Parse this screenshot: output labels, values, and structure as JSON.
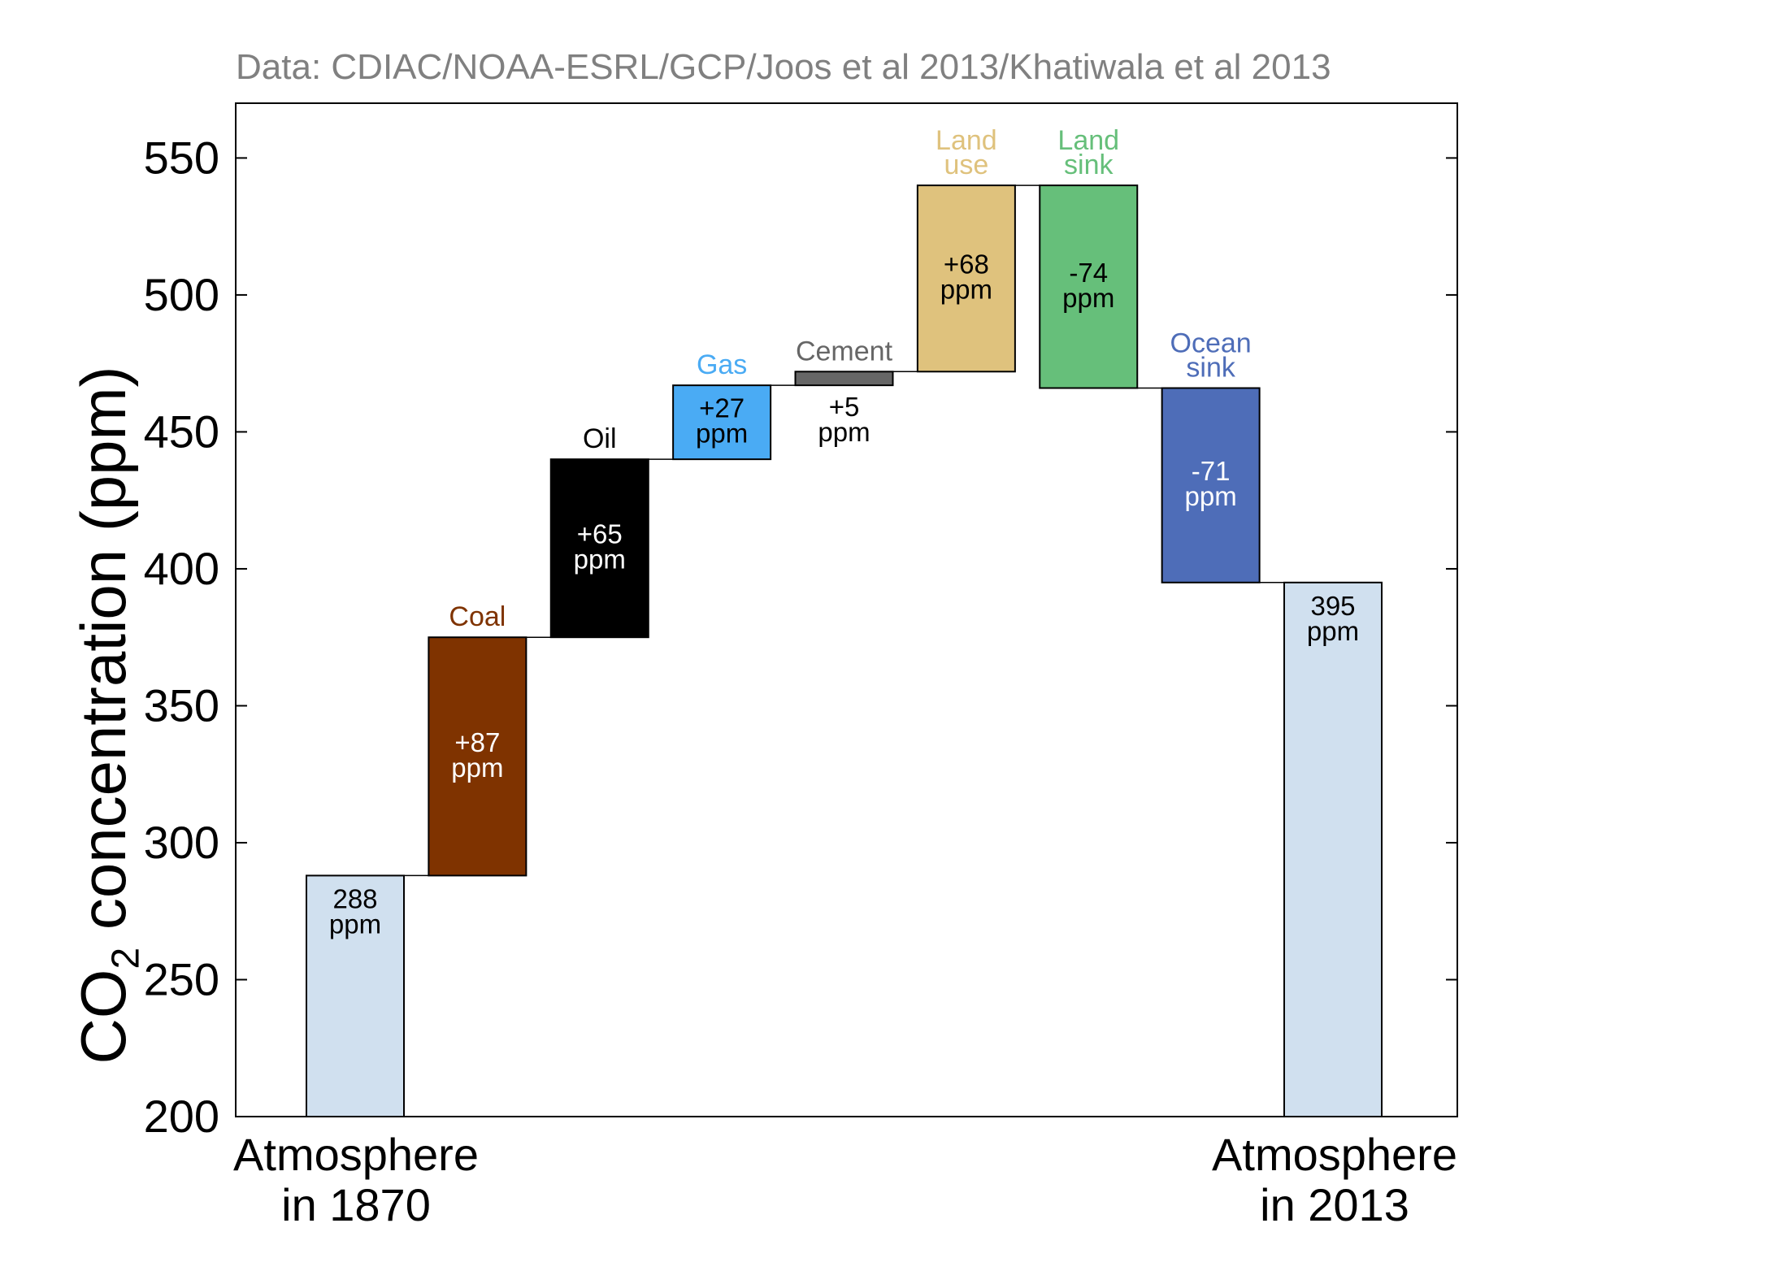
{
  "header": {
    "source": "Data: CDIAC/NOAA-ESRL/GCP/Joos et al 2013/Khatiwala et al 2013"
  },
  "axis": {
    "ylabel_main": "CO",
    "ylabel_sub": "2",
    "ylabel_rest": " concentration (ppm)",
    "start_line1": "Atmosphere",
    "start_line2": "in 1870",
    "end_line1": "Atmosphere",
    "end_line2": "in 2013"
  },
  "chart_data": {
    "type": "bar",
    "subtype": "waterfall",
    "title": "",
    "ylabel": "CO2 concentration (ppm)",
    "ylim": [
      200,
      570
    ],
    "yticks": [
      200,
      250,
      300,
      350,
      400,
      450,
      500,
      550
    ],
    "grid": false,
    "bars": [
      {
        "name": "",
        "bottom": 200,
        "top": 288,
        "value_label": [
          "288",
          "ppm"
        ],
        "color": "#d0e0ef",
        "text_color": "#000000"
      },
      {
        "name": "Coal",
        "bottom": 288,
        "top": 375,
        "value_label": [
          "+87",
          "ppm"
        ],
        "color": "#7f3300",
        "text_color": "#ffffff",
        "name_color": "#7f3300"
      },
      {
        "name": "Oil",
        "bottom": 375,
        "top": 440,
        "value_label": [
          "+65",
          "ppm"
        ],
        "color": "#000000",
        "text_color": "#ffffff",
        "name_color": "#000000"
      },
      {
        "name": "Gas",
        "bottom": 440,
        "top": 467,
        "value_label": [
          "+27",
          "ppm"
        ],
        "color": "#4aabf4",
        "text_color": "#000000",
        "name_color": "#4aabf4"
      },
      {
        "name": "Cement",
        "bottom": 467,
        "top": 472,
        "value_label": [
          "+5",
          "ppm"
        ],
        "color": "#666666",
        "text_color": "#000000",
        "name_color": "#666666",
        "label_below": true
      },
      {
        "name": "Land use",
        "name_lines": [
          "Land",
          "use"
        ],
        "bottom": 472,
        "top": 540,
        "value_label": [
          "+68",
          "ppm"
        ],
        "color": "#dfc27d",
        "text_color": "#000000",
        "name_color": "#dfc27d"
      },
      {
        "name": "Land sink",
        "name_lines": [
          "Land",
          "sink"
        ],
        "bottom": 466,
        "top": 540,
        "value_label": [
          "-74",
          "ppm"
        ],
        "color": "#66bf7a",
        "text_color": "#000000",
        "name_color": "#66bf7a"
      },
      {
        "name": "Ocean sink",
        "name_lines": [
          "Ocean",
          "sink"
        ],
        "bottom": 395,
        "top": 466,
        "value_label": [
          "-71",
          "ppm"
        ],
        "color": "#4e6db8",
        "text_color": "#ffffff",
        "name_color": "#4e6db8"
      },
      {
        "name": "",
        "bottom": 200,
        "top": 395,
        "value_label": [
          "395",
          "ppm"
        ],
        "color": "#d0e0ef",
        "text_color": "#000000"
      }
    ]
  }
}
